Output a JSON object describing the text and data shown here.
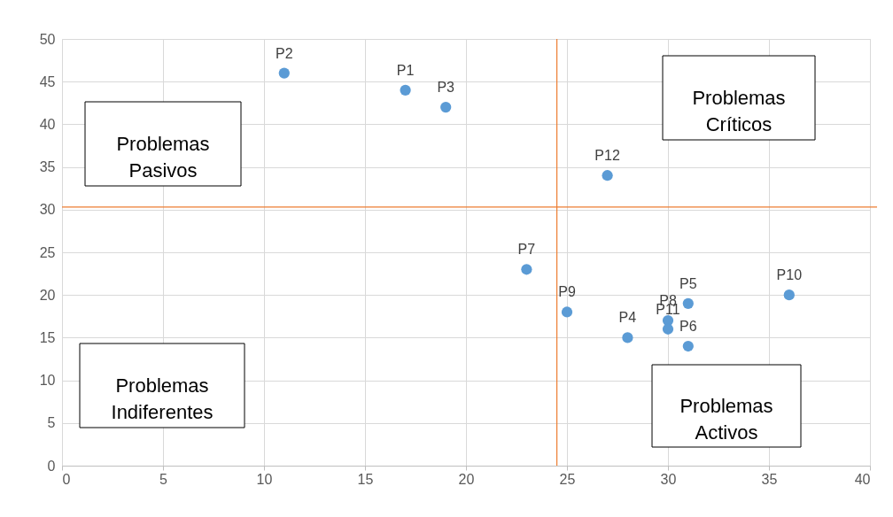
{
  "chart_data": {
    "type": "scatter",
    "xlim": [
      0,
      40
    ],
    "xticks": [
      0,
      5,
      10,
      15,
      20,
      25,
      30,
      35,
      40
    ],
    "ylim": [
      0,
      50
    ],
    "yticks": [
      0,
      5,
      10,
      15,
      20,
      25,
      30,
      35,
      40,
      45,
      50
    ],
    "grid": true,
    "marker": "circle",
    "legend": false,
    "series": [
      {
        "name": "P1",
        "color": "#5b9bd5",
        "x": [
          17
        ],
        "values": [
          44
        ]
      },
      {
        "name": "P2",
        "color": "#5b9bd5",
        "x": [
          11
        ],
        "values": [
          46
        ]
      },
      {
        "name": "P3",
        "color": "#5b9bd5",
        "x": [
          19
        ],
        "values": [
          42
        ]
      },
      {
        "name": "P4",
        "color": "#5b9bd5",
        "x": [
          28
        ],
        "values": [
          15
        ]
      },
      {
        "name": "P5",
        "color": "#5b9bd5",
        "x": [
          31
        ],
        "values": [
          19
        ]
      },
      {
        "name": "P6",
        "color": "#5b9bd5",
        "x": [
          31
        ],
        "values": [
          14
        ]
      },
      {
        "name": "P7",
        "color": "#5b9bd5",
        "x": [
          23
        ],
        "values": [
          23
        ]
      },
      {
        "name": "P8",
        "color": "#5b9bd5",
        "x": [
          30
        ],
        "values": [
          17
        ]
      },
      {
        "name": "P9",
        "color": "#5b9bd5",
        "x": [
          25
        ],
        "values": [
          18
        ]
      },
      {
        "name": "P10",
        "color": "#5b9bd5",
        "x": [
          36
        ],
        "values": [
          20
        ]
      },
      {
        "name": "P11",
        "color": "#5b9bd5",
        "x": [
          30
        ],
        "values": [
          16
        ]
      },
      {
        "name": "P12",
        "color": "#5b9bd5",
        "x": [
          27
        ],
        "values": [
          34
        ]
      }
    ],
    "ref_lines": [
      {
        "axis": "x",
        "value": 24.5,
        "color": "#ed7d31"
      },
      {
        "axis": "y",
        "value": 30.3,
        "color": "#ed7d31"
      }
    ],
    "annotations": [
      "Problemas\nPasivos",
      "Problemas\nCríticos",
      "Problemas\nIndiferentes",
      "Problemas\nActivos"
    ]
  }
}
